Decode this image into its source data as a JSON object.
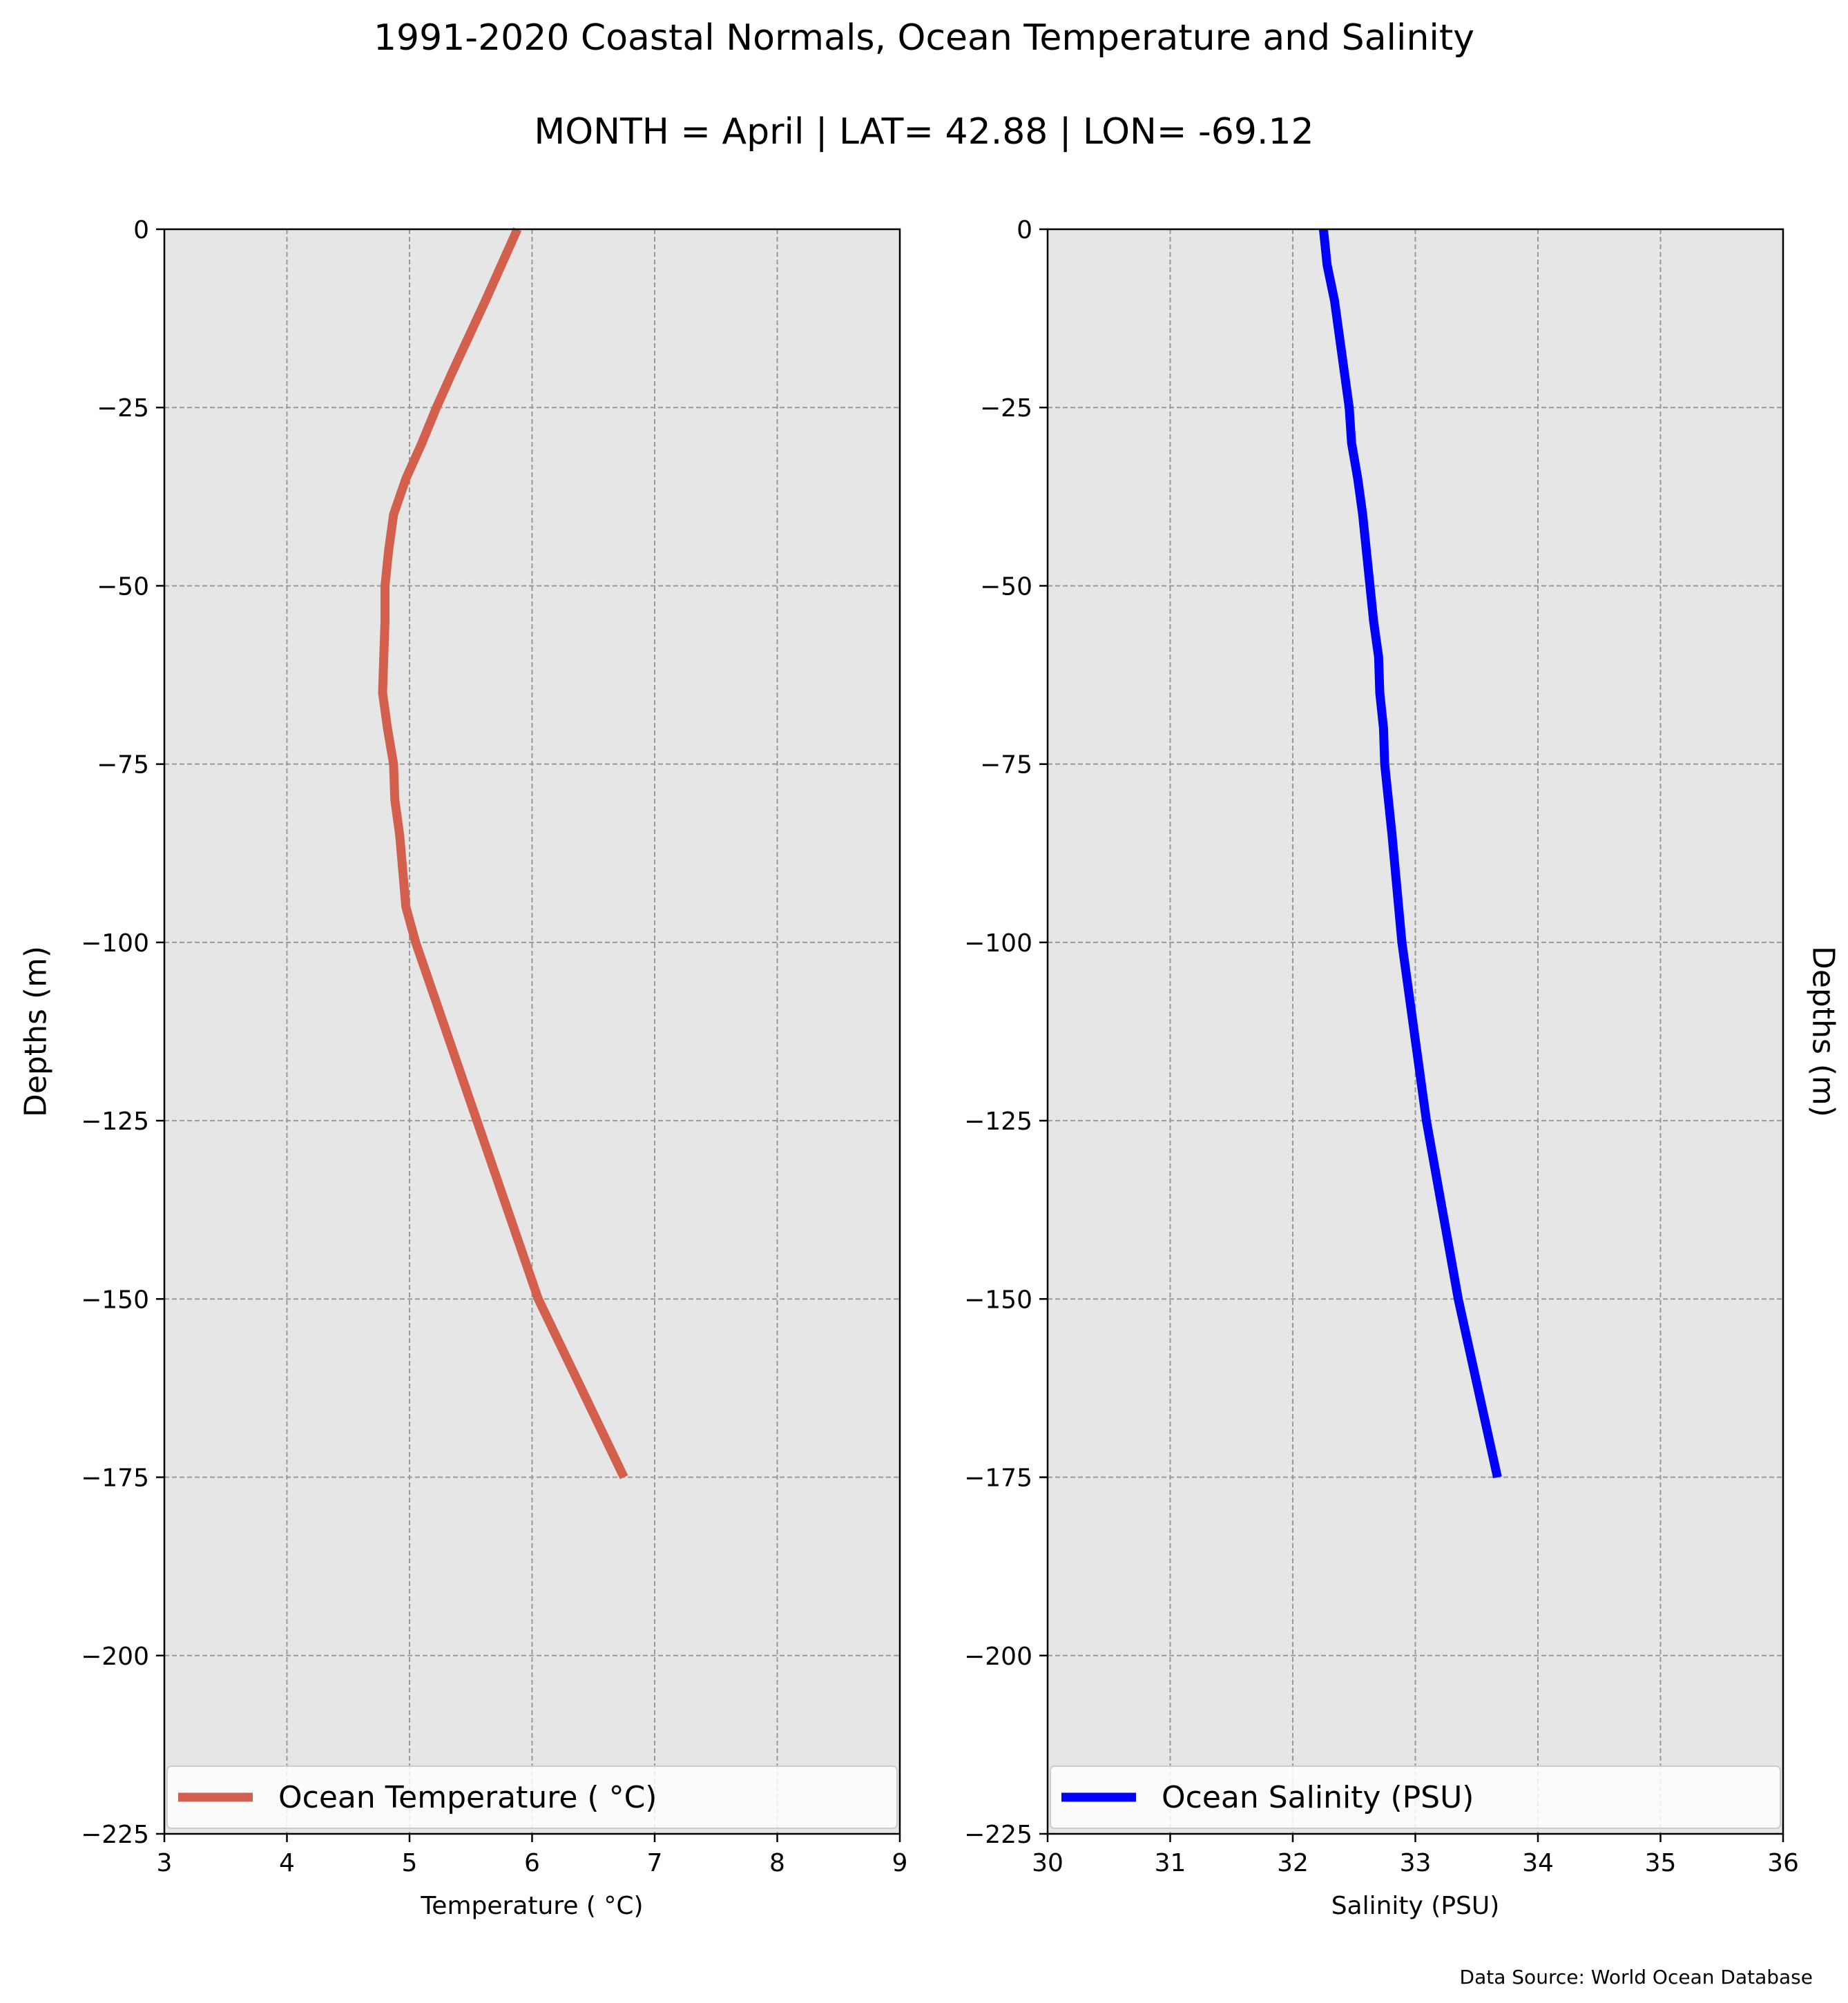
{
  "figure": {
    "title": "1991-2020 Coastal Normals, Ocean Temperature and Salinity",
    "subtitle": "MONTH = April | LAT= 42.88 | LON= -69.12",
    "source": "Data Source: World Ocean Database",
    "background": "#e6e6e6",
    "grid": true
  },
  "chart_data": [
    {
      "type": "line",
      "xlabel": "Temperature ($^\\circ$C)",
      "xlabel_display": "Temperature ( °C)",
      "ylabel": "Depths (m)",
      "xlim": [
        3,
        9
      ],
      "ylim": [
        -225,
        0
      ],
      "xticks": [
        "3",
        "4",
        "5",
        "6",
        "7",
        "8",
        "9"
      ],
      "yticks": [
        "0",
        "−25",
        "−50",
        "−75",
        "−100",
        "−125",
        "−150",
        "−175",
        "−200",
        "−225"
      ],
      "ytick_values": [
        0,
        -25,
        -50,
        -75,
        -100,
        -125,
        -150,
        -175,
        -200,
        -225
      ],
      "legend_position": "bottom",
      "series": [
        {
          "name": "Ocean Temperature ( °C)",
          "color": "#d35f4d",
          "x": [
            5.88,
            5.62,
            5.35,
            5.22,
            5.1,
            4.97,
            4.87,
            4.83,
            4.8,
            4.8,
            4.79,
            4.78,
            4.82,
            4.87,
            4.88,
            4.92,
            4.97,
            5.05,
            5.55,
            6.05,
            6.75
          ],
          "y": [
            0,
            -10,
            -20,
            -25,
            -30,
            -35,
            -40,
            -45,
            -50,
            -55,
            -60,
            -65,
            -70,
            -75,
            -80,
            -85,
            -95,
            -100,
            -125,
            -150,
            -175
          ]
        }
      ]
    },
    {
      "type": "line",
      "xlabel": "Salinity (PSU)",
      "ylabel": "Depths (m)",
      "xlim": [
        30,
        36
      ],
      "ylim": [
        -225,
        0
      ],
      "xticks": [
        "30",
        "31",
        "32",
        "33",
        "34",
        "35",
        "36"
      ],
      "yticks": [
        "0",
        "−25",
        "−50",
        "−75",
        "−100",
        "−125",
        "−150",
        "−175",
        "−200",
        "−225"
      ],
      "ytick_values": [
        0,
        -25,
        -50,
        -75,
        -100,
        -125,
        -150,
        -175,
        -200,
        -225
      ],
      "legend_position": "bottom",
      "series": [
        {
          "name": "Ocean Salinity (PSU)",
          "color": "#0000ff",
          "x": [
            32.25,
            32.28,
            32.34,
            32.38,
            32.42,
            32.46,
            32.48,
            32.53,
            32.57,
            32.6,
            32.63,
            32.66,
            32.7,
            32.71,
            32.74,
            32.75,
            32.81,
            32.89,
            33.09,
            33.35,
            33.67
          ],
          "y": [
            0,
            -5,
            -10,
            -15,
            -20,
            -25,
            -30,
            -35,
            -40,
            -45,
            -50,
            -55,
            -60,
            -65,
            -70,
            -75,
            -85,
            -100,
            -125,
            -150,
            -175
          ]
        }
      ]
    }
  ]
}
